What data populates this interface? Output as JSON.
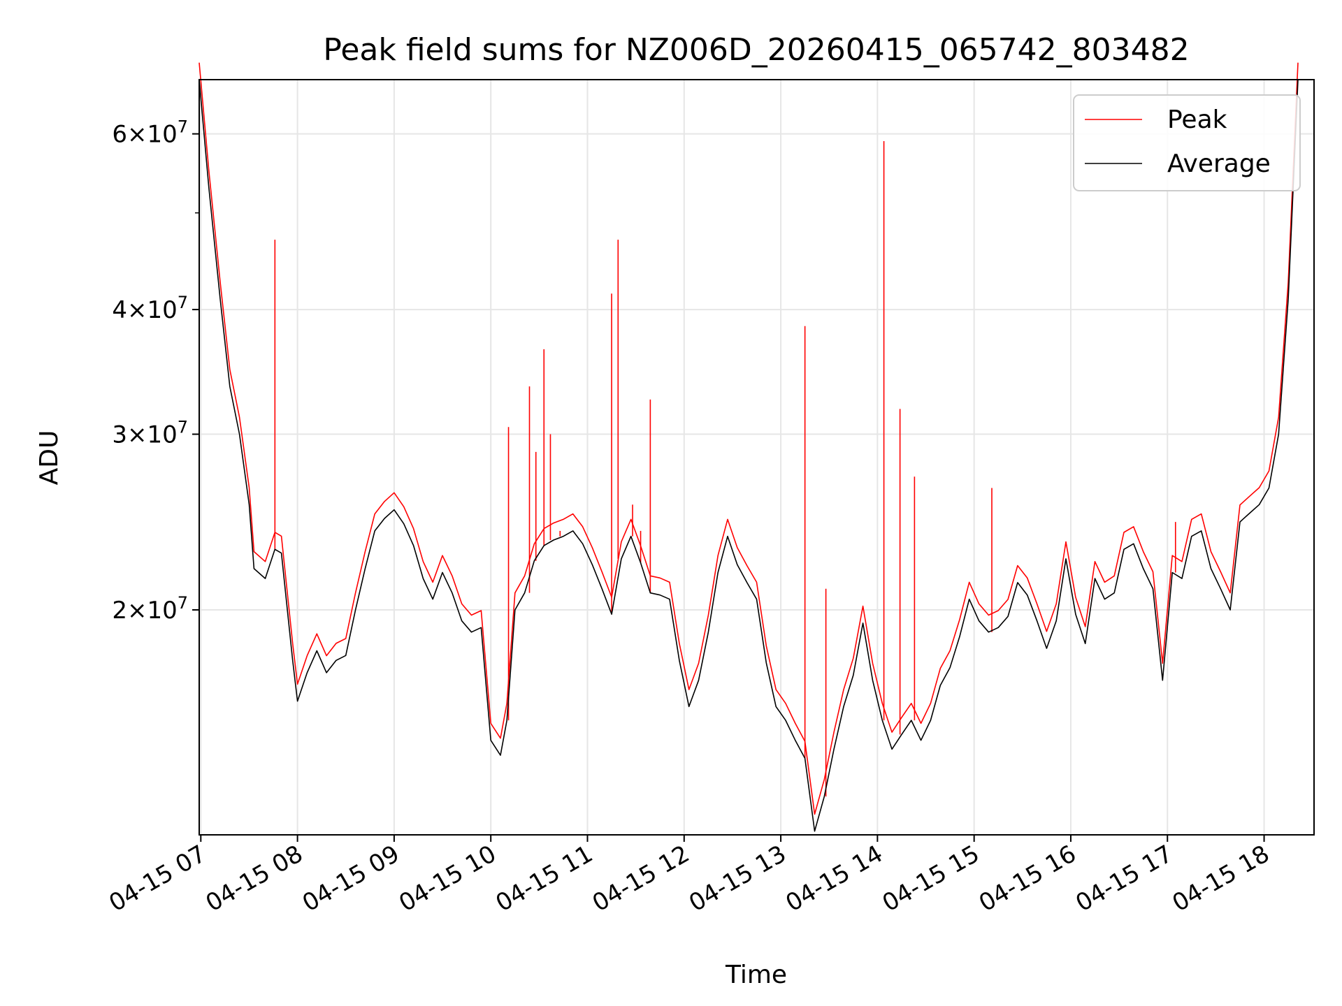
{
  "chart_data": {
    "type": "line",
    "title": "Peak field sums for NZ006D_20260415_065742_803482",
    "xlabel": "Time",
    "ylabel": "ADU",
    "yscale": "log",
    "ylim": [
      11900000,
      68000000
    ],
    "xlim": [
      "04-15 06:59",
      "04-15 18:31"
    ],
    "grid": true,
    "legend_position": "upper right",
    "x_ticks": [
      "04-15 07",
      "04-15 08",
      "04-15 09",
      "04-15 10",
      "04-15 11",
      "04-15 12",
      "04-15 13",
      "04-15 14",
      "04-15 15",
      "04-15 16",
      "04-15 17",
      "04-15 18"
    ],
    "y_ticks": [
      {
        "value": 20000000,
        "mantissa": "2",
        "exponent": "7"
      },
      {
        "value": 30000000,
        "mantissa": "3",
        "exponent": "7"
      },
      {
        "value": 40000000,
        "mantissa": "4",
        "exponent": "7"
      },
      {
        "value": 60000000,
        "mantissa": "6",
        "exponent": "7"
      }
    ],
    "series": [
      {
        "name": "Peak",
        "color": "#ff0000"
      },
      {
        "name": "Average",
        "color": "#000000"
      }
    ],
    "x": [
      "04-15 06:59",
      "04-15 07:05",
      "04-15 07:12",
      "04-15 07:18",
      "04-15 07:24",
      "04-15 07:30",
      "04-15 07:33",
      "04-15 07:40",
      "04-15 07:46",
      "04-15 07:50",
      "04-15 07:53",
      "04-15 07:57",
      "04-15 08:00",
      "04-15 08:06",
      "04-15 08:12",
      "04-15 08:18",
      "04-15 08:24",
      "04-15 08:30",
      "04-15 08:36",
      "04-15 08:42",
      "04-15 08:48",
      "04-15 08:54",
      "04-15 09:00",
      "04-15 09:06",
      "04-15 09:12",
      "04-15 09:18",
      "04-15 09:24",
      "04-15 09:30",
      "04-15 09:36",
      "04-15 09:42",
      "04-15 09:48",
      "04-15 09:54",
      "04-15 10:00",
      "04-15 10:06",
      "04-15 10:10",
      "04-15 10:15",
      "04-15 10:21",
      "04-15 10:27",
      "04-15 10:33",
      "04-15 10:39",
      "04-15 10:45",
      "04-15 10:51",
      "04-15 10:57",
      "04-15 11:03",
      "04-15 11:09",
      "04-15 11:15",
      "04-15 11:21",
      "04-15 11:27",
      "04-15 11:33",
      "04-15 11:39",
      "04-15 11:45",
      "04-15 11:51",
      "04-15 11:57",
      "04-15 12:03",
      "04-15 12:09",
      "04-15 12:15",
      "04-15 12:21",
      "04-15 12:27",
      "04-15 12:33",
      "04-15 12:39",
      "04-15 12:45",
      "04-15 12:51",
      "04-15 12:57",
      "04-15 13:03",
      "04-15 13:09",
      "04-15 13:15",
      "04-15 13:21",
      "04-15 13:27",
      "04-15 13:33",
      "04-15 13:39",
      "04-15 13:45",
      "04-15 13:51",
      "04-15 13:57",
      "04-15 14:03",
      "04-15 14:09",
      "04-15 14:15",
      "04-15 14:21",
      "04-15 14:27",
      "04-15 14:33",
      "04-15 14:39",
      "04-15 14:45",
      "04-15 14:51",
      "04-15 14:57",
      "04-15 15:03",
      "04-15 15:09",
      "04-15 15:15",
      "04-15 15:21",
      "04-15 15:27",
      "04-15 15:33",
      "04-15 15:39",
      "04-15 15:45",
      "04-15 15:51",
      "04-15 15:57",
      "04-15 16:03",
      "04-15 16:09",
      "04-15 16:15",
      "04-15 16:21",
      "04-15 16:27",
      "04-15 16:33",
      "04-15 16:39",
      "04-15 16:45",
      "04-15 16:51",
      "04-15 16:57",
      "04-15 17:03",
      "04-15 17:09",
      "04-15 17:15",
      "04-15 17:21",
      "04-15 17:27",
      "04-15 17:33",
      "04-15 17:39",
      "04-15 17:45",
      "04-15 17:51",
      "04-15 17:57",
      "04-15 18:03",
      "04-15 18:09",
      "04-15 18:15",
      "04-15 18:21",
      "04-15 18:27",
      "04-15 18:31"
    ],
    "average": [
      68000000,
      53000000,
      41000000,
      33500000,
      30000000,
      25500000,
      22000000,
      21500000,
      23000000,
      22800000,
      20500000,
      17800000,
      16200000,
      17300000,
      18200000,
      17300000,
      17800000,
      18000000,
      20000000,
      22000000,
      24000000,
      24700000,
      25200000,
      24400000,
      23200000,
      21500000,
      20500000,
      21800000,
      20800000,
      19500000,
      19000000,
      19200000,
      14800000,
      14300000,
      15500000,
      20000000,
      20800000,
      22400000,
      23200000,
      23500000,
      23700000,
      24000000,
      23300000,
      22200000,
      21000000,
      19800000,
      22500000,
      23700000,
      22300000,
      20800000,
      20700000,
      20500000,
      17800000,
      16000000,
      17000000,
      19000000,
      21800000,
      23700000,
      22200000,
      21300000,
      20500000,
      17700000,
      16000000,
      15500000,
      14800000,
      14200000,
      12000000,
      13000000,
      14500000,
      16000000,
      17200000,
      19400000,
      17000000,
      15500000,
      14500000,
      15000000,
      15500000,
      14800000,
      15500000,
      16800000,
      17500000,
      18800000,
      20500000,
      19500000,
      19000000,
      19200000,
      19700000,
      21300000,
      20700000,
      19500000,
      18300000,
      19500000,
      22500000,
      19800000,
      18500000,
      21500000,
      20500000,
      20800000,
      23000000,
      23300000,
      22000000,
      21000000,
      17000000,
      21800000,
      21500000,
      23700000,
      24000000,
      22000000,
      21000000,
      20000000,
      24500000,
      25000000,
      25500000,
      26500000,
      30000000,
      41000000,
      68000000
    ],
    "peak_spikes": [
      {
        "x": "04-15 07:46",
        "value": 47000000
      },
      {
        "x": "04-15 10:11",
        "value": 30500000
      },
      {
        "x": "04-15 10:24",
        "value": 33500000
      },
      {
        "x": "04-15 10:28",
        "value": 28800000
      },
      {
        "x": "04-15 10:33",
        "value": 36500000
      },
      {
        "x": "04-15 10:37",
        "value": 30000000
      },
      {
        "x": "04-15 10:43",
        "value": 24000000
      },
      {
        "x": "04-15 11:15",
        "value": 41500000
      },
      {
        "x": "04-15 11:19",
        "value": 47000000
      },
      {
        "x": "04-15 11:28",
        "value": 25500000
      },
      {
        "x": "04-15 11:33",
        "value": 24000000
      },
      {
        "x": "04-15 11:39",
        "value": 32500000
      },
      {
        "x": "04-15 13:15",
        "value": 38500000
      },
      {
        "x": "04-15 13:28",
        "value": 21000000
      },
      {
        "x": "04-15 14:04",
        "value": 59000000
      },
      {
        "x": "04-15 14:14",
        "value": 31800000
      },
      {
        "x": "04-15 14:23",
        "value": 27200000
      },
      {
        "x": "04-15 15:11",
        "value": 26500000
      },
      {
        "x": "04-15 17:05",
        "value": 24500000
      }
    ]
  }
}
